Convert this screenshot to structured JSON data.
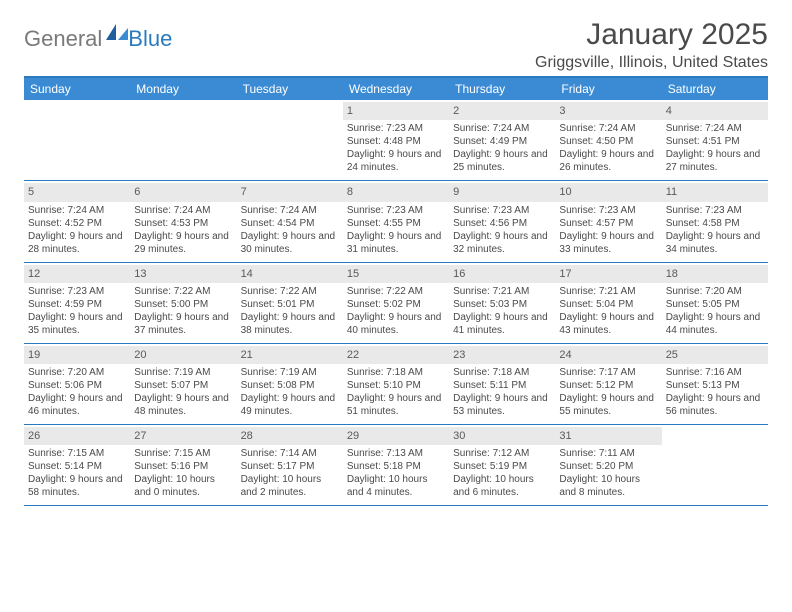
{
  "brand": {
    "part1": "General",
    "part2": "Blue"
  },
  "title": "January 2025",
  "location": "Griggsville, Illinois, United States",
  "colors": {
    "header_bg": "#3b8bd4",
    "border": "#2a7abf",
    "daynum_bg": "#e9e9e9",
    "text": "#4a4a4a",
    "logo_gray": "#7a7a7a",
    "logo_blue": "#2a7abf"
  },
  "daysOfWeek": [
    "Sunday",
    "Monday",
    "Tuesday",
    "Wednesday",
    "Thursday",
    "Friday",
    "Saturday"
  ],
  "weeks": [
    [
      {
        "n": "",
        "sr": "",
        "ss": "",
        "dl": ""
      },
      {
        "n": "",
        "sr": "",
        "ss": "",
        "dl": ""
      },
      {
        "n": "",
        "sr": "",
        "ss": "",
        "dl": ""
      },
      {
        "n": "1",
        "sr": "Sunrise: 7:23 AM",
        "ss": "Sunset: 4:48 PM",
        "dl": "Daylight: 9 hours and 24 minutes."
      },
      {
        "n": "2",
        "sr": "Sunrise: 7:24 AM",
        "ss": "Sunset: 4:49 PM",
        "dl": "Daylight: 9 hours and 25 minutes."
      },
      {
        "n": "3",
        "sr": "Sunrise: 7:24 AM",
        "ss": "Sunset: 4:50 PM",
        "dl": "Daylight: 9 hours and 26 minutes."
      },
      {
        "n": "4",
        "sr": "Sunrise: 7:24 AM",
        "ss": "Sunset: 4:51 PM",
        "dl": "Daylight: 9 hours and 27 minutes."
      }
    ],
    [
      {
        "n": "5",
        "sr": "Sunrise: 7:24 AM",
        "ss": "Sunset: 4:52 PM",
        "dl": "Daylight: 9 hours and 28 minutes."
      },
      {
        "n": "6",
        "sr": "Sunrise: 7:24 AM",
        "ss": "Sunset: 4:53 PM",
        "dl": "Daylight: 9 hours and 29 minutes."
      },
      {
        "n": "7",
        "sr": "Sunrise: 7:24 AM",
        "ss": "Sunset: 4:54 PM",
        "dl": "Daylight: 9 hours and 30 minutes."
      },
      {
        "n": "8",
        "sr": "Sunrise: 7:23 AM",
        "ss": "Sunset: 4:55 PM",
        "dl": "Daylight: 9 hours and 31 minutes."
      },
      {
        "n": "9",
        "sr": "Sunrise: 7:23 AM",
        "ss": "Sunset: 4:56 PM",
        "dl": "Daylight: 9 hours and 32 minutes."
      },
      {
        "n": "10",
        "sr": "Sunrise: 7:23 AM",
        "ss": "Sunset: 4:57 PM",
        "dl": "Daylight: 9 hours and 33 minutes."
      },
      {
        "n": "11",
        "sr": "Sunrise: 7:23 AM",
        "ss": "Sunset: 4:58 PM",
        "dl": "Daylight: 9 hours and 34 minutes."
      }
    ],
    [
      {
        "n": "12",
        "sr": "Sunrise: 7:23 AM",
        "ss": "Sunset: 4:59 PM",
        "dl": "Daylight: 9 hours and 35 minutes."
      },
      {
        "n": "13",
        "sr": "Sunrise: 7:22 AM",
        "ss": "Sunset: 5:00 PM",
        "dl": "Daylight: 9 hours and 37 minutes."
      },
      {
        "n": "14",
        "sr": "Sunrise: 7:22 AM",
        "ss": "Sunset: 5:01 PM",
        "dl": "Daylight: 9 hours and 38 minutes."
      },
      {
        "n": "15",
        "sr": "Sunrise: 7:22 AM",
        "ss": "Sunset: 5:02 PM",
        "dl": "Daylight: 9 hours and 40 minutes."
      },
      {
        "n": "16",
        "sr": "Sunrise: 7:21 AM",
        "ss": "Sunset: 5:03 PM",
        "dl": "Daylight: 9 hours and 41 minutes."
      },
      {
        "n": "17",
        "sr": "Sunrise: 7:21 AM",
        "ss": "Sunset: 5:04 PM",
        "dl": "Daylight: 9 hours and 43 minutes."
      },
      {
        "n": "18",
        "sr": "Sunrise: 7:20 AM",
        "ss": "Sunset: 5:05 PM",
        "dl": "Daylight: 9 hours and 44 minutes."
      }
    ],
    [
      {
        "n": "19",
        "sr": "Sunrise: 7:20 AM",
        "ss": "Sunset: 5:06 PM",
        "dl": "Daylight: 9 hours and 46 minutes."
      },
      {
        "n": "20",
        "sr": "Sunrise: 7:19 AM",
        "ss": "Sunset: 5:07 PM",
        "dl": "Daylight: 9 hours and 48 minutes."
      },
      {
        "n": "21",
        "sr": "Sunrise: 7:19 AM",
        "ss": "Sunset: 5:08 PM",
        "dl": "Daylight: 9 hours and 49 minutes."
      },
      {
        "n": "22",
        "sr": "Sunrise: 7:18 AM",
        "ss": "Sunset: 5:10 PM",
        "dl": "Daylight: 9 hours and 51 minutes."
      },
      {
        "n": "23",
        "sr": "Sunrise: 7:18 AM",
        "ss": "Sunset: 5:11 PM",
        "dl": "Daylight: 9 hours and 53 minutes."
      },
      {
        "n": "24",
        "sr": "Sunrise: 7:17 AM",
        "ss": "Sunset: 5:12 PM",
        "dl": "Daylight: 9 hours and 55 minutes."
      },
      {
        "n": "25",
        "sr": "Sunrise: 7:16 AM",
        "ss": "Sunset: 5:13 PM",
        "dl": "Daylight: 9 hours and 56 minutes."
      }
    ],
    [
      {
        "n": "26",
        "sr": "Sunrise: 7:15 AM",
        "ss": "Sunset: 5:14 PM",
        "dl": "Daylight: 9 hours and 58 minutes."
      },
      {
        "n": "27",
        "sr": "Sunrise: 7:15 AM",
        "ss": "Sunset: 5:16 PM",
        "dl": "Daylight: 10 hours and 0 minutes."
      },
      {
        "n": "28",
        "sr": "Sunrise: 7:14 AM",
        "ss": "Sunset: 5:17 PM",
        "dl": "Daylight: 10 hours and 2 minutes."
      },
      {
        "n": "29",
        "sr": "Sunrise: 7:13 AM",
        "ss": "Sunset: 5:18 PM",
        "dl": "Daylight: 10 hours and 4 minutes."
      },
      {
        "n": "30",
        "sr": "Sunrise: 7:12 AM",
        "ss": "Sunset: 5:19 PM",
        "dl": "Daylight: 10 hours and 6 minutes."
      },
      {
        "n": "31",
        "sr": "Sunrise: 7:11 AM",
        "ss": "Sunset: 5:20 PM",
        "dl": "Daylight: 10 hours and 8 minutes."
      },
      {
        "n": "",
        "sr": "",
        "ss": "",
        "dl": ""
      }
    ]
  ]
}
